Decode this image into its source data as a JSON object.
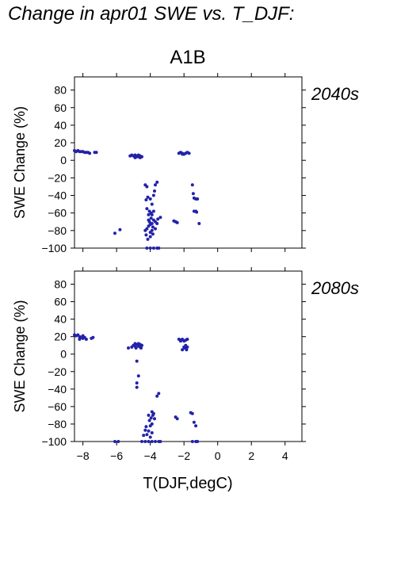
{
  "title": "Change in apr01 SWE vs. T_DJF:",
  "scenario": "A1B",
  "xlabel": "T(DJF,degC)",
  "ylabel": "SWE Change (%)",
  "colors": {
    "points": "#2222AA",
    "panel_label": "#2233AA",
    "axes": "#000000"
  },
  "chart_data": [
    {
      "type": "scatter",
      "panel_label": "2040s",
      "xlim": [
        -8.5,
        5
      ],
      "ylim": [
        -100,
        95
      ],
      "xticks": [
        -8,
        -6,
        -4,
        -2,
        0,
        2,
        4
      ],
      "yticks": [
        80,
        60,
        40,
        20,
        0,
        -20,
        -40,
        -60,
        -80,
        -100
      ],
      "xtick_labels": [],
      "ytick_labels": [
        "80",
        "60",
        "40",
        "20",
        "0",
        "−20",
        "−40",
        "−60",
        "−80",
        "−100"
      ],
      "grid": false,
      "points": [
        [
          -8.5,
          11
        ],
        [
          -8.4,
          10
        ],
        [
          -8.3,
          11
        ],
        [
          -8.2,
          10
        ],
        [
          -8.1,
          10
        ],
        [
          -8.0,
          10
        ],
        [
          -7.9,
          9
        ],
        [
          -7.8,
          9
        ],
        [
          -7.7,
          9
        ],
        [
          -7.6,
          8
        ],
        [
          -7.3,
          9
        ],
        [
          -7.2,
          9
        ],
        [
          -5.2,
          5
        ],
        [
          -5.1,
          6
        ],
        [
          -5.0,
          5
        ],
        [
          -4.9,
          6
        ],
        [
          -4.8,
          5
        ],
        [
          -4.7,
          4
        ],
        [
          -4.6,
          5
        ],
        [
          -4.5,
          4
        ],
        [
          -4.9,
          3
        ],
        [
          -4.7,
          6
        ],
        [
          -4.6,
          3
        ],
        [
          -4.8,
          4
        ],
        [
          -2.3,
          8
        ],
        [
          -2.2,
          9
        ],
        [
          -2.1,
          8
        ],
        [
          -2.0,
          7
        ],
        [
          -1.9,
          8
        ],
        [
          -1.8,
          9
        ],
        [
          -1.7,
          8
        ],
        [
          -2.1,
          7
        ],
        [
          -6.1,
          -83
        ],
        [
          -5.8,
          -79
        ],
        [
          -4.3,
          -28
        ],
        [
          -4.2,
          -30
        ],
        [
          -4.25,
          -45
        ],
        [
          -4.2,
          -55
        ],
        [
          -4.15,
          -42
        ],
        [
          -4.1,
          -75
        ],
        [
          -4.1,
          -62
        ],
        [
          -4.0,
          -82
        ],
        [
          -4.05,
          -70
        ],
        [
          -4.2,
          -78
        ],
        [
          -4.3,
          -80
        ],
        [
          -4.25,
          -85
        ],
        [
          -4.15,
          -90
        ],
        [
          -4.0,
          -87
        ],
        [
          -3.95,
          -66
        ],
        [
          -3.9,
          -72
        ],
        [
          -3.85,
          -76
        ],
        [
          -3.8,
          -68
        ],
        [
          -3.9,
          -80
        ],
        [
          -4.0,
          -73
        ],
        [
          -4.1,
          -68
        ],
        [
          -3.95,
          -60
        ],
        [
          -3.9,
          -50
        ],
        [
          -3.8,
          -40
        ],
        [
          -3.75,
          -35
        ],
        [
          -3.7,
          -28
        ],
        [
          -3.6,
          -25
        ],
        [
          -3.8,
          -58
        ],
        [
          -3.7,
          -70
        ],
        [
          -3.6,
          -72
        ],
        [
          -3.55,
          -67
        ],
        [
          -3.7,
          -78
        ],
        [
          -4.05,
          -58
        ],
        [
          -4.0,
          -44
        ],
        [
          -3.9,
          -62
        ],
        [
          -3.85,
          -84
        ],
        [
          -3.4,
          -65
        ],
        [
          -4.2,
          -100
        ],
        [
          -4.0,
          -100
        ],
        [
          -3.8,
          -100
        ],
        [
          -3.6,
          -100
        ],
        [
          -3.5,
          -100
        ],
        [
          -2.6,
          -69
        ],
        [
          -2.5,
          -70
        ],
        [
          -2.4,
          -71
        ],
        [
          -1.5,
          -28
        ],
        [
          -1.45,
          -38
        ],
        [
          -1.4,
          -58
        ],
        [
          -1.3,
          -58
        ],
        [
          -1.3,
          -44
        ],
        [
          -1.2,
          -44
        ],
        [
          -1.4,
          -43
        ],
        [
          -1.1,
          -72
        ],
        [
          -1.25,
          -59
        ]
      ]
    },
    {
      "type": "scatter",
      "panel_label": "2080s",
      "xlim": [
        -8.5,
        5
      ],
      "ylim": [
        -100,
        95
      ],
      "xticks": [
        -8,
        -6,
        -4,
        -2,
        0,
        2,
        4
      ],
      "yticks": [
        80,
        60,
        40,
        20,
        0,
        -20,
        -40,
        -60,
        -80,
        -100
      ],
      "xtick_labels": [
        "−8",
        "−6",
        "−4",
        "−2",
        "0",
        "2",
        "4"
      ],
      "ytick_labels": [
        "80",
        "60",
        "40",
        "20",
        "0",
        "−20",
        "−40",
        "−60",
        "−80",
        "−100"
      ],
      "grid": false,
      "points": [
        [
          -8.5,
          22
        ],
        [
          -8.4,
          21
        ],
        [
          -8.3,
          22
        ],
        [
          -8.2,
          20
        ],
        [
          -8.1,
          19
        ],
        [
          -8.0,
          18
        ],
        [
          -7.9,
          19
        ],
        [
          -7.8,
          17
        ],
        [
          -8.2,
          17
        ],
        [
          -8.0,
          21
        ],
        [
          -7.5,
          18
        ],
        [
          -7.4,
          19
        ],
        [
          -5.3,
          7
        ],
        [
          -5.1,
          8
        ],
        [
          -5.0,
          10
        ],
        [
          -4.9,
          12
        ],
        [
          -4.8,
          11
        ],
        [
          -4.7,
          9
        ],
        [
          -4.6,
          8
        ],
        [
          -4.5,
          10
        ],
        [
          -4.85,
          7
        ],
        [
          -4.7,
          12
        ],
        [
          -4.6,
          11
        ],
        [
          -4.55,
          7
        ],
        [
          -4.9,
          9
        ],
        [
          -4.8,
          -8
        ],
        [
          -4.7,
          -25
        ],
        [
          -4.8,
          -33
        ],
        [
          -4.8,
          -38
        ],
        [
          -2.3,
          17
        ],
        [
          -2.2,
          16
        ],
        [
          -2.1,
          17
        ],
        [
          -2.0,
          15
        ],
        [
          -1.9,
          16
        ],
        [
          -1.8,
          17
        ],
        [
          -2.2,
          15
        ],
        [
          -2.1,
          5
        ],
        [
          -1.95,
          7
        ],
        [
          -1.9,
          10
        ],
        [
          -1.8,
          8
        ],
        [
          -1.85,
          5
        ],
        [
          -2.0,
          8
        ],
        [
          -6.1,
          -100
        ],
        [
          -5.9,
          -100
        ],
        [
          -4.5,
          -100
        ],
        [
          -4.4,
          -93
        ],
        [
          -4.3,
          -87
        ],
        [
          -4.2,
          -92
        ],
        [
          -4.1,
          -88
        ],
        [
          -4.0,
          -95
        ],
        [
          -3.9,
          -90
        ],
        [
          -4.25,
          -83
        ],
        [
          -4.0,
          -82
        ],
        [
          -3.9,
          -80
        ],
        [
          -4.05,
          -76
        ],
        [
          -3.95,
          -73
        ],
        [
          -3.85,
          -70
        ],
        [
          -3.8,
          -68
        ],
        [
          -3.75,
          -74
        ],
        [
          -4.1,
          -70
        ],
        [
          -3.9,
          -66
        ],
        [
          -3.6,
          -48
        ],
        [
          -3.5,
          -45
        ],
        [
          -4.3,
          -100
        ],
        [
          -4.1,
          -100
        ],
        [
          -3.9,
          -100
        ],
        [
          -3.7,
          -100
        ],
        [
          -3.5,
          -100
        ],
        [
          -3.4,
          -100
        ],
        [
          -2.5,
          -72
        ],
        [
          -2.4,
          -74
        ],
        [
          -1.6,
          -67
        ],
        [
          -1.5,
          -68
        ],
        [
          -1.4,
          -78
        ],
        [
          -1.3,
          -82
        ],
        [
          -1.5,
          -100
        ],
        [
          -1.3,
          -100
        ],
        [
          -1.2,
          -100
        ]
      ]
    }
  ]
}
